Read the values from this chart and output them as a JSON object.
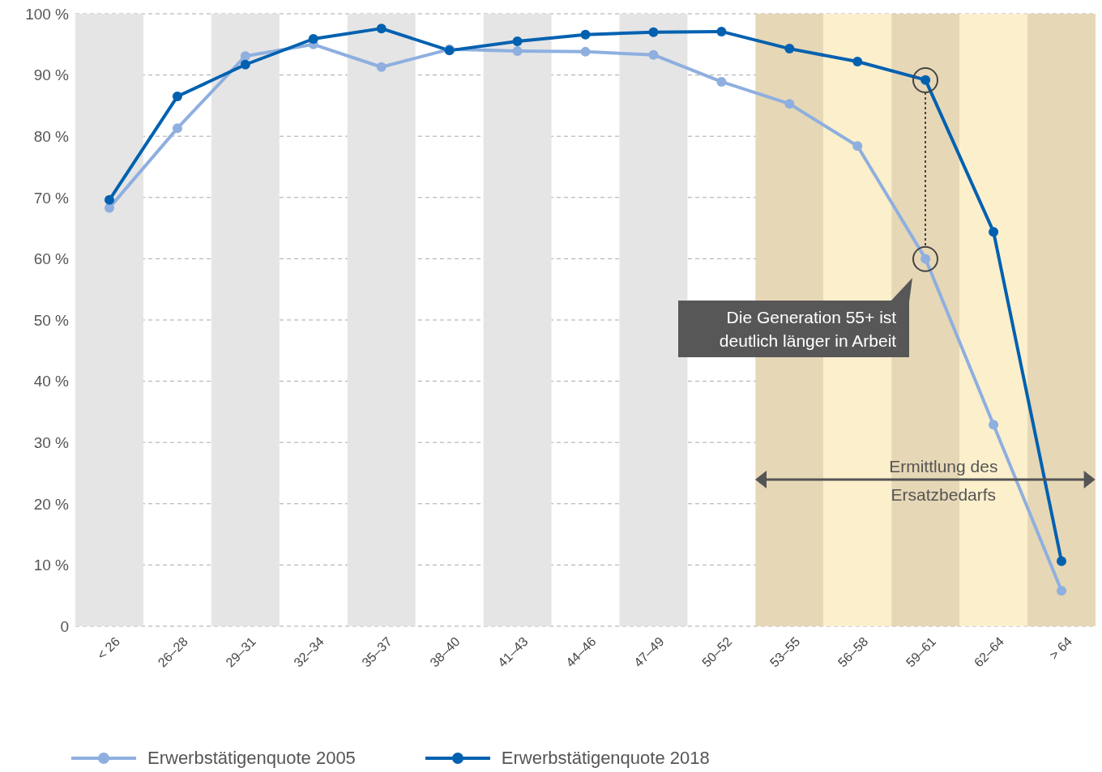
{
  "chart_data": {
    "type": "line",
    "categories": [
      "< 26",
      "26–28",
      "29–31",
      "32–34",
      "35–37",
      "38–40",
      "41–43",
      "44–46",
      "47–49",
      "50–52",
      "53–55",
      "56–58",
      "59–61",
      "62–64",
      "> 64"
    ],
    "series": [
      {
        "name": "Erwerbstätigenquote 2005",
        "color": "#8eafdf",
        "values": [
          68.3,
          81.3,
          93.1,
          95.0,
          91.3,
          94.2,
          93.9,
          93.8,
          93.3,
          88.9,
          85.3,
          78.4,
          60.0,
          32.9,
          5.8
        ]
      },
      {
        "name": "Erwerbstätigenquote 2018",
        "color": "#0061b0",
        "values": [
          69.6,
          86.5,
          91.7,
          95.9,
          97.6,
          94.0,
          95.5,
          96.6,
          97.0,
          97.1,
          94.3,
          92.2,
          89.2,
          64.4,
          10.6
        ]
      }
    ],
    "ylim": [
      0,
      100
    ],
    "yticks": [
      0,
      {
        "value": 10,
        "label": "10 %"
      },
      {
        "value": 20,
        "label": "20 %"
      },
      {
        "value": 30,
        "label": "30 %"
      },
      {
        "value": 40,
        "label": "40 %"
      },
      {
        "value": 50,
        "label": "50 %"
      },
      {
        "value": 60,
        "label": "60 %"
      },
      {
        "value": 70,
        "label": "70 %"
      },
      {
        "value": 80,
        "label": "80 %"
      },
      {
        "value": 90,
        "label": "90 %"
      },
      {
        "value": 100,
        "label": "100 %"
      }
    ],
    "grid": "y",
    "legend": "bottom left",
    "marker": "circle",
    "line_style": "solid",
    "bands": [
      {
        "axis": "x",
        "from": "< 26",
        "to": "< 26",
        "color": "#e5e5e5"
      },
      {
        "axis": "x",
        "from": "29–31",
        "to": "29–31",
        "color": "#e5e5e5"
      },
      {
        "axis": "x",
        "from": "35–37",
        "to": "35–37",
        "color": "#e5e5e5"
      },
      {
        "axis": "x",
        "from": "41–43",
        "to": "41–43",
        "color": "#e5e5e5"
      },
      {
        "axis": "x",
        "from": "47–49",
        "to": "47–49",
        "color": "#e5e5e5"
      },
      {
        "axis": "x",
        "from": "53–55",
        "to": "53–55",
        "color": "#e6d7b6"
      },
      {
        "axis": "x",
        "from": "56–58",
        "to": "56–58",
        "color": "#fcefcc"
      },
      {
        "axis": "x",
        "from": "59–61",
        "to": "59–61",
        "color": "#e6d7b6"
      },
      {
        "axis": "x",
        "from": "62–64",
        "to": "62–64",
        "color": "#fcefcc"
      },
      {
        "axis": "x",
        "from": "> 64",
        "to": "> 64",
        "color": "#e6d7b6"
      }
    ],
    "annotations": [
      "Die Generation 55+ ist deutlich länger in Arbeit",
      "Ermittlung des Ersatzbedarfs"
    ]
  }
}
